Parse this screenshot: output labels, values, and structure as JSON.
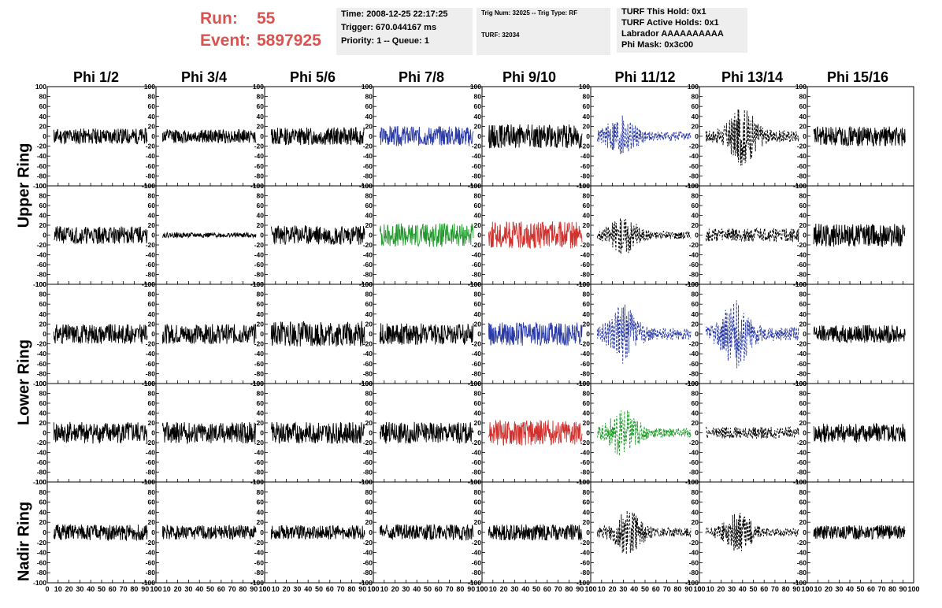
{
  "header": {
    "run_label": "Run:",
    "run_value": "55",
    "event_label": "Event:",
    "event_value": "5897925"
  },
  "info": {
    "time": "Time: 2008-12-25 22:17:25",
    "trigger": "Trigger: 670.044167 ms",
    "priority": "Priority: 1 -- Queue: 1",
    "trig_num": "Trig Num: 32025 -- Trig Type: RF",
    "turf": "TURF: 32034",
    "turf_hold": "TURF This Hold: 0x1",
    "turf_active": "TURF Active Holds: 0x1",
    "labrador": "Labrador AAAAAAAAAA",
    "phi_mask": "Phi Mask: 0x3c00"
  },
  "columns": [
    "Phi 1/2",
    "Phi 3/4",
    "Phi 5/6",
    "Phi 7/8",
    "Phi 9/10",
    "Phi 11/12",
    "Phi 13/14",
    "Phi 15/16"
  ],
  "ring_labels": [
    "Upper Ring",
    "Lower Ring",
    "Nadir Ring"
  ],
  "chart_data": {
    "type": "line",
    "grid_rows": 5,
    "grid_cols": 8,
    "ylim": [
      -100,
      100
    ],
    "xlim": [
      0,
      100
    ],
    "yticks": [
      -100,
      -80,
      -60,
      -40,
      -20,
      0,
      20,
      40,
      60,
      80,
      100
    ],
    "xticks": [
      0,
      10,
      20,
      30,
      40,
      50,
      60,
      70,
      80,
      90,
      100
    ],
    "colors": {
      "black": "#000000",
      "blue": "#2a3aa6",
      "green": "#1f9a2a",
      "red": "#d0312d"
    },
    "panels": [
      [
        {
          "color": "black",
          "style": "solid",
          "amp": 16,
          "seed": 11
        },
        {
          "color": "black",
          "style": "solid",
          "amp": 14,
          "seed": 12
        },
        {
          "color": "black",
          "style": "solid",
          "amp": 18,
          "seed": 13
        },
        {
          "color": "blue",
          "style": "solid",
          "amp": 20,
          "seed": 14
        },
        {
          "color": "black",
          "style": "solid",
          "amp": 24,
          "seed": 15
        },
        {
          "color": "blue",
          "style": "dashed",
          "amp": 18,
          "seed": 16,
          "burst": 28
        },
        {
          "color": "black",
          "style": "dashed",
          "amp": 24,
          "seed": 17,
          "burst": 40
        },
        {
          "color": "black",
          "style": "solid",
          "amp": 20,
          "seed": 18
        }
      ],
      [
        {
          "color": "black",
          "style": "solid",
          "amp": 18,
          "seed": 21
        },
        {
          "color": "black",
          "style": "solid",
          "amp": 5,
          "seed": 22
        },
        {
          "color": "black",
          "style": "solid",
          "amp": 20,
          "seed": 23
        },
        {
          "color": "green",
          "style": "solid",
          "amp": 24,
          "seed": 24
        },
        {
          "color": "red",
          "style": "solid",
          "amp": 28,
          "seed": 25
        },
        {
          "color": "black",
          "style": "dashed",
          "amp": 16,
          "seed": 26,
          "burst": 30
        },
        {
          "color": "black",
          "style": "dashed",
          "amp": 14,
          "seed": 27
        },
        {
          "color": "black",
          "style": "solid",
          "amp": 24,
          "seed": 28
        }
      ],
      [
        {
          "color": "black",
          "style": "solid",
          "amp": 20,
          "seed": 31
        },
        {
          "color": "black",
          "style": "solid",
          "amp": 20,
          "seed": 32
        },
        {
          "color": "black",
          "style": "solid",
          "amp": 26,
          "seed": 33
        },
        {
          "color": "black",
          "style": "solid",
          "amp": 22,
          "seed": 34
        },
        {
          "color": "blue",
          "style": "solid",
          "amp": 24,
          "seed": 35
        },
        {
          "color": "blue",
          "style": "dashed",
          "amp": 24,
          "seed": 36,
          "burst": 30
        },
        {
          "color": "blue",
          "style": "dashed",
          "amp": 28,
          "seed": 37,
          "burst": 34
        },
        {
          "color": "black",
          "style": "solid",
          "amp": 18,
          "seed": 38
        }
      ],
      [
        {
          "color": "black",
          "style": "solid",
          "amp": 22,
          "seed": 41
        },
        {
          "color": "black",
          "style": "solid",
          "amp": 22,
          "seed": 42
        },
        {
          "color": "black",
          "style": "solid",
          "amp": 22,
          "seed": 43
        },
        {
          "color": "black",
          "style": "solid",
          "amp": 22,
          "seed": 44
        },
        {
          "color": "red",
          "style": "solid",
          "amp": 26,
          "seed": 45
        },
        {
          "color": "green",
          "style": "dashed",
          "amp": 20,
          "seed": 46,
          "burst": 30
        },
        {
          "color": "black",
          "style": "dashed",
          "amp": 12,
          "seed": 47
        },
        {
          "color": "black",
          "style": "solid",
          "amp": 20,
          "seed": 48
        }
      ],
      [
        {
          "color": "black",
          "style": "solid",
          "amp": 16,
          "seed": 51
        },
        {
          "color": "black",
          "style": "solid",
          "amp": 14,
          "seed": 52
        },
        {
          "color": "black",
          "style": "solid",
          "amp": 14,
          "seed": 53
        },
        {
          "color": "black",
          "style": "solid",
          "amp": 16,
          "seed": 54
        },
        {
          "color": "black",
          "style": "solid",
          "amp": 16,
          "seed": 55
        },
        {
          "color": "black",
          "style": "dashed",
          "amp": 18,
          "seed": 56,
          "burst": 34
        },
        {
          "color": "black",
          "style": "dashed",
          "amp": 16,
          "seed": 57,
          "burst": 36
        },
        {
          "color": "black",
          "style": "solid",
          "amp": 14,
          "seed": 58
        }
      ]
    ]
  }
}
